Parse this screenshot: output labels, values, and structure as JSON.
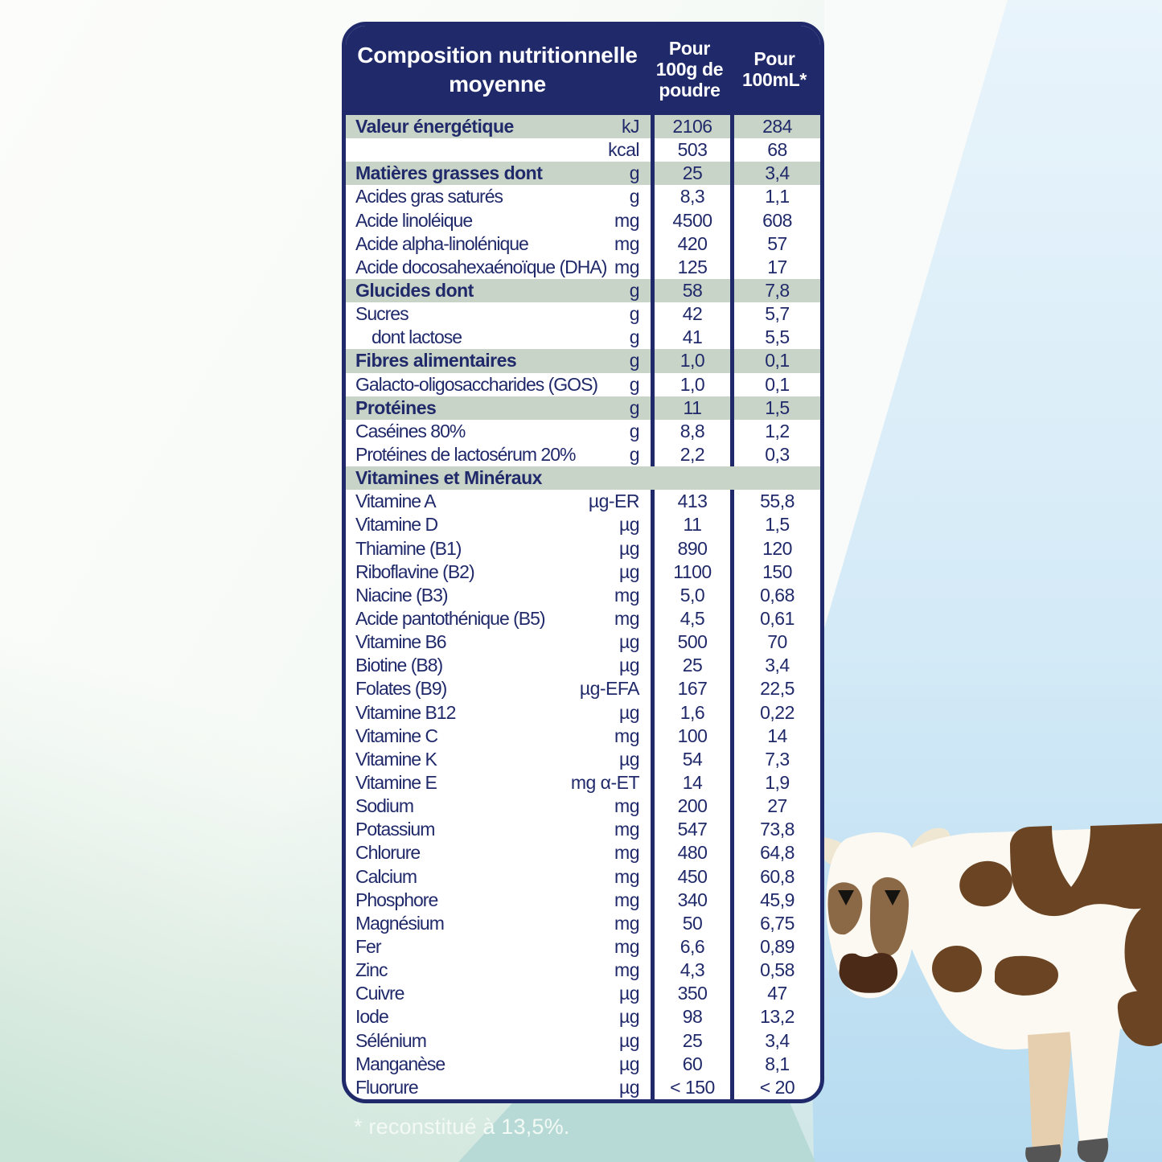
{
  "table": {
    "title": "Composition nutritionnelle\nmoyenne",
    "col1_header": "Pour\n100g de\npoudre",
    "col2_header": "Pour\n100mL*",
    "rows": [
      {
        "label": "Valeur énergétique",
        "unit": "kJ",
        "v100g": "2106",
        "v100ml": "284",
        "section": true
      },
      {
        "label": "",
        "unit": "kcal",
        "v100g": "503",
        "v100ml": "68"
      },
      {
        "label": "Matières grasses dont",
        "unit": "g",
        "v100g": "25",
        "v100ml": "3,4",
        "section": true
      },
      {
        "label": "Acides gras saturés",
        "unit": "g",
        "v100g": "8,3",
        "v100ml": "1,1"
      },
      {
        "label": "Acide linoléique",
        "unit": "mg",
        "v100g": "4500",
        "v100ml": "608"
      },
      {
        "label": "Acide alpha-linolénique",
        "unit": "mg",
        "v100g": "420",
        "v100ml": "57"
      },
      {
        "label": "Acide docosahexaénoïque (DHA)",
        "unit": "mg",
        "v100g": "125",
        "v100ml": "17"
      },
      {
        "label": "Glucides dont",
        "unit": "g",
        "v100g": "58",
        "v100ml": "7,8",
        "section": true
      },
      {
        "label": "Sucres",
        "unit": "g",
        "v100g": "42",
        "v100ml": "5,7"
      },
      {
        "label": "dont lactose",
        "unit": "g",
        "v100g": "41",
        "v100ml": "5,5",
        "indent": true
      },
      {
        "label": "Fibres alimentaires",
        "unit": "g",
        "v100g": "1,0",
        "v100ml": "0,1",
        "section": true
      },
      {
        "label": "Galacto-oligosaccharides (GOS)",
        "unit": "g",
        "v100g": "1,0",
        "v100ml": "0,1"
      },
      {
        "label": "Protéines",
        "unit": "g",
        "v100g": "11",
        "v100ml": "1,5",
        "section": true
      },
      {
        "label": "Caséines 80%",
        "unit": "g",
        "v100g": "8,8",
        "v100ml": "1,2"
      },
      {
        "label": "Protéines de lactosérum 20%",
        "unit": "g",
        "v100g": "2,2",
        "v100ml": "0,3"
      },
      {
        "label": "Vitamines et Minéraux",
        "unit": "",
        "v100g": "",
        "v100ml": "",
        "section": true,
        "fullwidth": true
      },
      {
        "label": "Vitamine A",
        "unit": "µg-ER",
        "v100g": "413",
        "v100ml": "55,8"
      },
      {
        "label": "Vitamine D",
        "unit": "µg",
        "v100g": "11",
        "v100ml": "1,5"
      },
      {
        "label": "Thiamine (B1)",
        "unit": "µg",
        "v100g": "890",
        "v100ml": "120"
      },
      {
        "label": "Riboflavine (B2)",
        "unit": "µg",
        "v100g": "1100",
        "v100ml": "150"
      },
      {
        "label": "Niacine (B3)",
        "unit": "mg",
        "v100g": "5,0",
        "v100ml": "0,68"
      },
      {
        "label": "Acide pantothénique (B5)",
        "unit": "mg",
        "v100g": "4,5",
        "v100ml": "0,61"
      },
      {
        "label": "Vitamine B6",
        "unit": "µg",
        "v100g": "500",
        "v100ml": "70"
      },
      {
        "label": "Biotine (B8)",
        "unit": "µg",
        "v100g": "25",
        "v100ml": "3,4"
      },
      {
        "label": "Folates (B9)",
        "unit": "µg-EFA",
        "v100g": "167",
        "v100ml": "22,5"
      },
      {
        "label": "Vitamine B12",
        "unit": "µg",
        "v100g": "1,6",
        "v100ml": "0,22"
      },
      {
        "label": "Vitamine C",
        "unit": "mg",
        "v100g": "100",
        "v100ml": "14"
      },
      {
        "label": "Vitamine K",
        "unit": "µg",
        "v100g": "54",
        "v100ml": "7,3"
      },
      {
        "label": "Vitamine E",
        "unit": "mg α-ET",
        "v100g": "14",
        "v100ml": "1,9"
      },
      {
        "label": "Sodium",
        "unit": "mg",
        "v100g": "200",
        "v100ml": "27"
      },
      {
        "label": "Potassium",
        "unit": "mg",
        "v100g": "547",
        "v100ml": "73,8"
      },
      {
        "label": "Chlorure",
        "unit": "mg",
        "v100g": "480",
        "v100ml": "64,8"
      },
      {
        "label": "Calcium",
        "unit": "mg",
        "v100g": "450",
        "v100ml": "60,8"
      },
      {
        "label": "Phosphore",
        "unit": "mg",
        "v100g": "340",
        "v100ml": "45,9"
      },
      {
        "label": "Magnésium",
        "unit": "mg",
        "v100g": "50",
        "v100ml": "6,75"
      },
      {
        "label": "Fer",
        "unit": "mg",
        "v100g": "6,6",
        "v100ml": "0,89"
      },
      {
        "label": "Zinc",
        "unit": "mg",
        "v100g": "4,3",
        "v100ml": "0,58"
      },
      {
        "label": "Cuivre",
        "unit": "µg",
        "v100g": "350",
        "v100ml": "47"
      },
      {
        "label": "Iode",
        "unit": "µg",
        "v100g": "98",
        "v100ml": "13,2"
      },
      {
        "label": "Sélénium",
        "unit": "µg",
        "v100g": "25",
        "v100ml": "3,4"
      },
      {
        "label": "Manganèse",
        "unit": "µg",
        "v100g": "60",
        "v100ml": "8,1"
      },
      {
        "label": "Fluorure",
        "unit": "µg",
        "v100g": "< 150",
        "v100ml": "< 20"
      }
    ],
    "footnote": "* reconstitué à 13,5%."
  },
  "colors": {
    "navy": "#20296a",
    "section_green": "#c8d4c7",
    "background_mint": "#cde5d9",
    "background_blue": "#c5e3f3",
    "background_teal": "#b8dad6",
    "cow_brown": "#6b4523",
    "cow_light_brown": "#8c6946",
    "cow_muzzle": "#4b2b18",
    "cow_body": "#fcf9f2"
  }
}
